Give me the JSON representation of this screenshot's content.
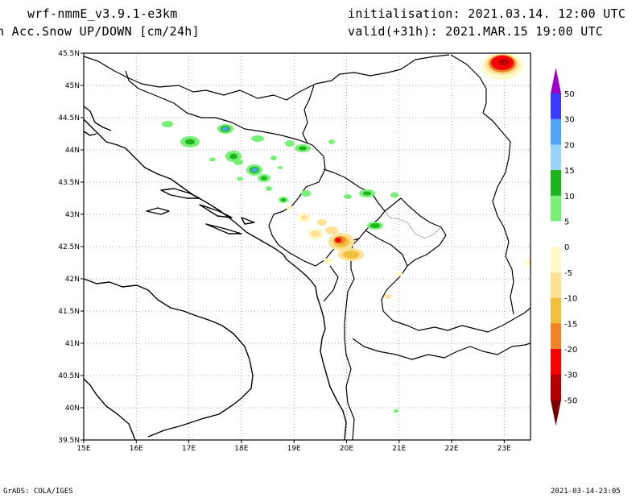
{
  "header": {
    "model": "wrf-nmmE_v3.9.1-e3km",
    "field": "n Acc.Snow UP/DOWN [cm/24h]",
    "initialisation": "initialisation: 2021.03.14.  12:00 UTC",
    "valid": "valid(+31h): 2021.MAR.15 19:00 UTC"
  },
  "map": {
    "lon_labels": [
      "15E",
      "16E",
      "17E",
      "18E",
      "19E",
      "20E",
      "21E",
      "22E",
      "23E"
    ],
    "lat_labels": [
      "45.5N",
      "45N",
      "44.5N",
      "44N",
      "43.5N",
      "43N",
      "42.5N",
      "42N",
      "41.5N",
      "41N",
      "40.5N",
      "40N",
      "39.5N"
    ],
    "gridlines": "dotted"
  },
  "legend": {
    "labels": [
      "50",
      "30",
      "20",
      "15",
      "10",
      "5",
      "0",
      "-5",
      "-10",
      "-15",
      "-20",
      "-30",
      "-50"
    ],
    "colors": [
      "#a000c8",
      "#3c3cff",
      "#50a5f5",
      "#96d2fa",
      "#1eb41e",
      "#78f078",
      "#ffffff",
      "#fffac8",
      "#ffe196",
      "#f0c03c",
      "#f08228",
      "#fa0000",
      "#b40000",
      "#780000"
    ]
  },
  "footer": {
    "credit": "GrADS: COLA/IGES",
    "timestamp": "2021-03-14-23:05"
  }
}
